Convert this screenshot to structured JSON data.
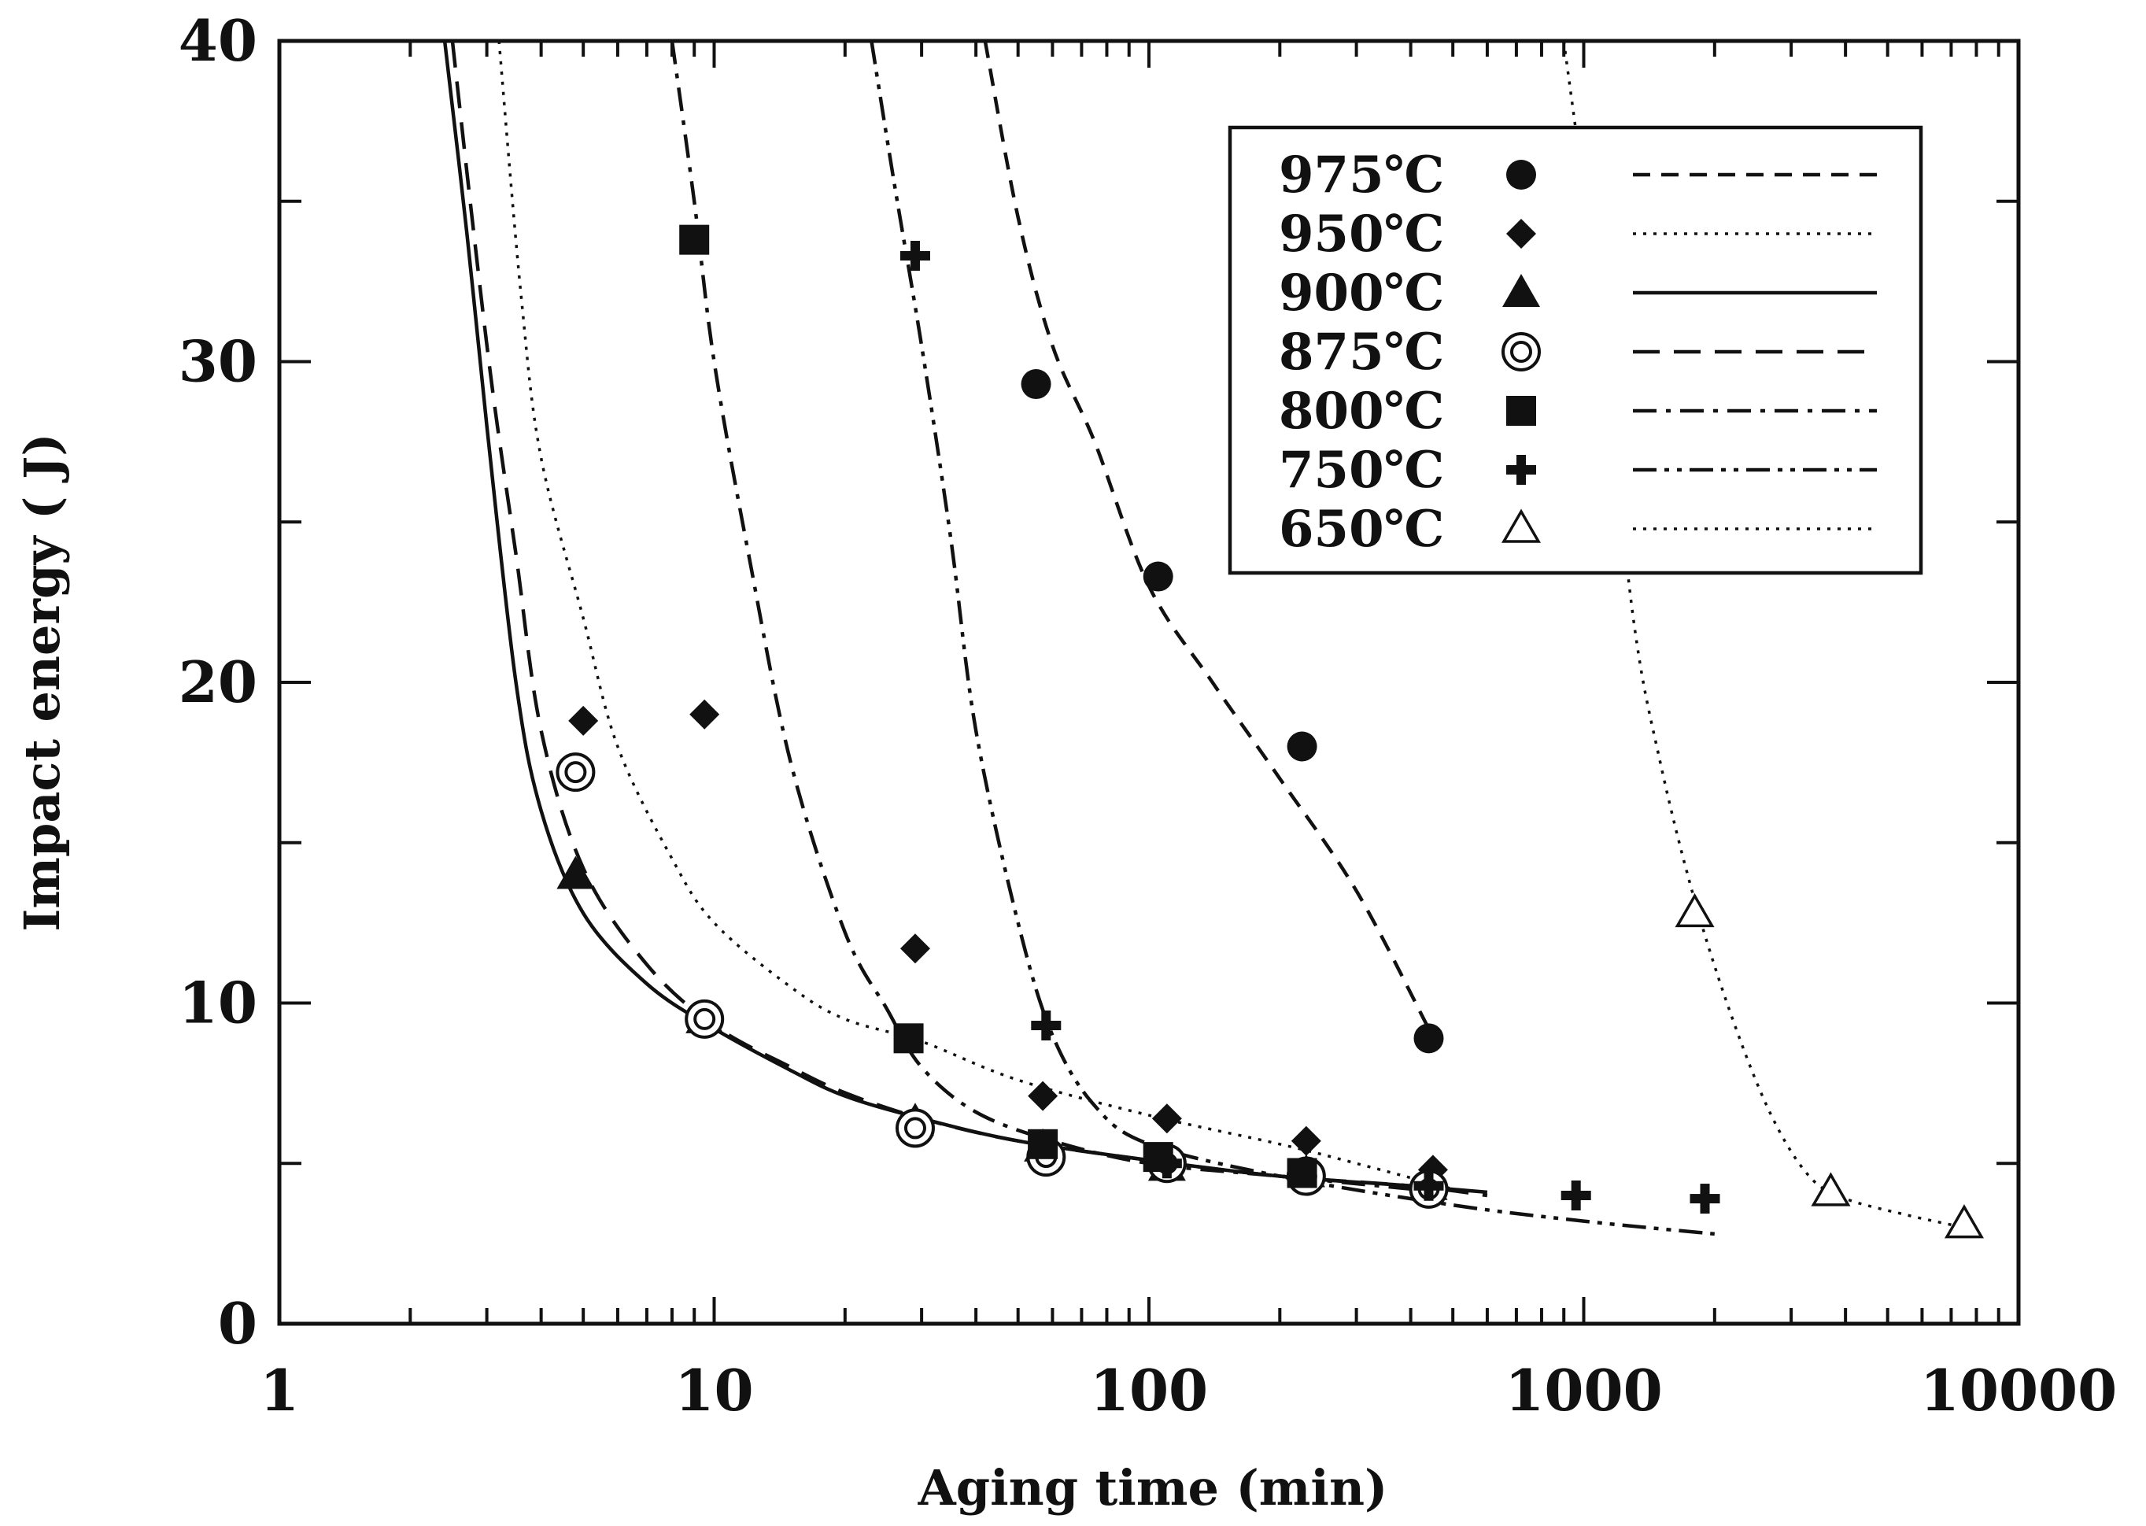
{
  "chart_data": {
    "type": "scatter",
    "title": "",
    "xlabel": "Aging time (min)",
    "ylabel": "Impact energy ( J)",
    "xscale": "log",
    "xlim": [
      1,
      10000
    ],
    "ylim": [
      0,
      40
    ],
    "xticks": [
      "1",
      "10",
      "100",
      "1000",
      "10000"
    ],
    "yticks": [
      "0",
      "10",
      "20",
      "30",
      "40"
    ],
    "legend_position": "top-right",
    "series": [
      {
        "name": "975℃",
        "marker": "filled-circle",
        "line_style": "dashed",
        "points": [
          [
            55,
            29.3
          ],
          [
            105,
            23.3
          ],
          [
            225,
            18.0
          ],
          [
            440,
            8.9
          ]
        ],
        "curve": [
          [
            42,
            40
          ],
          [
            50,
            34.5
          ],
          [
            60,
            30.5
          ],
          [
            75,
            27.5
          ],
          [
            100,
            23.0
          ],
          [
            140,
            20.0
          ],
          [
            200,
            17.0
          ],
          [
            300,
            13.5
          ],
          [
            440,
            9.2
          ]
        ]
      },
      {
        "name": "950℃",
        "marker": "filled-diamond",
        "line_style": "dotted",
        "points": [
          [
            5,
            18.8
          ],
          [
            9.5,
            19.0
          ],
          [
            29,
            11.7
          ],
          [
            57,
            7.1
          ],
          [
            110,
            6.4
          ],
          [
            230,
            5.7
          ],
          [
            450,
            4.8
          ]
        ],
        "curve": [
          [
            3.2,
            40
          ],
          [
            3.6,
            32
          ],
          [
            4,
            27
          ],
          [
            5,
            22
          ],
          [
            6,
            18
          ],
          [
            8,
            14.5
          ],
          [
            10,
            12.5
          ],
          [
            15,
            10.5
          ],
          [
            20,
            9.5
          ],
          [
            30,
            8.8
          ],
          [
            50,
            7.6
          ],
          [
            100,
            6.5
          ],
          [
            200,
            5.6
          ],
          [
            300,
            5.0
          ],
          [
            500,
            4.2
          ]
        ]
      },
      {
        "name": "900℃",
        "marker": "filled-triangle",
        "line_style": "solid",
        "points": [
          [
            4.8,
            14.0
          ],
          [
            9.5,
            9.5
          ],
          [
            29,
            6.3
          ],
          [
            57,
            5.5
          ],
          [
            110,
            4.9
          ],
          [
            230,
            4.7
          ],
          [
            440,
            4.3
          ]
        ],
        "curve": [
          [
            2.4,
            40
          ],
          [
            2.7,
            34
          ],
          [
            3,
            28
          ],
          [
            3.5,
            20
          ],
          [
            4,
            16
          ],
          [
            5,
            12.8
          ],
          [
            7,
            10.6
          ],
          [
            10,
            9.2
          ],
          [
            15,
            7.9
          ],
          [
            20,
            7.1
          ],
          [
            30,
            6.4
          ],
          [
            50,
            5.7
          ],
          [
            100,
            5.1
          ],
          [
            200,
            4.6
          ],
          [
            400,
            4.3
          ],
          [
            600,
            4.1
          ]
        ]
      },
      {
        "name": "875℃",
        "marker": "double-circle",
        "line_style": "long-dashed",
        "points": [
          [
            4.8,
            17.2
          ],
          [
            9.5,
            9.5
          ],
          [
            29,
            6.1
          ],
          [
            58,
            5.2
          ],
          [
            110,
            5.0
          ],
          [
            230,
            4.6
          ],
          [
            440,
            4.2
          ]
        ],
        "curve": [
          [
            2.5,
            40
          ],
          [
            2.8,
            34
          ],
          [
            3.1,
            29
          ],
          [
            3.5,
            24
          ],
          [
            4,
            18.5
          ],
          [
            5,
            14.2
          ],
          [
            7,
            11.2
          ],
          [
            10,
            9.3
          ],
          [
            15,
            8.0
          ],
          [
            20,
            7.2
          ],
          [
            30,
            6.4
          ],
          [
            50,
            5.7
          ],
          [
            100,
            5.1
          ],
          [
            200,
            4.6
          ],
          [
            400,
            4.3
          ],
          [
            600,
            4.0
          ]
        ]
      },
      {
        "name": "800℃",
        "marker": "filled-square",
        "line_style": "dash-dot",
        "points": [
          [
            9,
            33.8
          ],
          [
            28,
            8.9
          ],
          [
            57,
            5.6
          ],
          [
            105,
            5.2
          ],
          [
            225,
            4.7
          ]
        ],
        "curve": [
          [
            8,
            40
          ],
          [
            9,
            35
          ],
          [
            10,
            30
          ],
          [
            12,
            24
          ],
          [
            15,
            17.5
          ],
          [
            20,
            12.2
          ],
          [
            25,
            9.8
          ],
          [
            30,
            8.0
          ],
          [
            40,
            6.6
          ],
          [
            60,
            5.7
          ],
          [
            100,
            5.0
          ],
          [
            200,
            4.6
          ],
          [
            400,
            4.2
          ]
        ]
      },
      {
        "name": "750℃",
        "marker": "plus",
        "line_style": "dash-dot-dot",
        "points": [
          [
            29,
            33.3
          ],
          [
            58,
            9.3
          ],
          [
            110,
            5.0
          ],
          [
            440,
            4.3
          ],
          [
            960,
            4.0
          ],
          [
            1900,
            3.9
          ]
        ],
        "curve": [
          [
            23,
            40
          ],
          [
            26,
            35.5
          ],
          [
            30,
            30.5
          ],
          [
            35,
            24.5
          ],
          [
            40,
            18.5
          ],
          [
            50,
            12.5
          ],
          [
            60,
            9.0
          ],
          [
            75,
            6.8
          ],
          [
            100,
            5.6
          ],
          [
            200,
            4.6
          ],
          [
            500,
            3.7
          ],
          [
            1000,
            3.2
          ],
          [
            2000,
            2.8
          ]
        ]
      },
      {
        "name": "650℃",
        "marker": "open-triangle",
        "line_style": "dotted",
        "points": [
          [
            1800,
            12.8
          ],
          [
            3700,
            4.1
          ],
          [
            7500,
            3.1
          ]
        ],
        "curve": [
          [
            900,
            40
          ],
          [
            1100,
            31
          ],
          [
            1300,
            22
          ],
          [
            1500,
            17.5
          ],
          [
            1800,
            13.2
          ],
          [
            2200,
            9.5
          ],
          [
            2700,
            6.5
          ],
          [
            3300,
            4.6
          ],
          [
            4000,
            3.9
          ],
          [
            5500,
            3.4
          ],
          [
            7500,
            3.0
          ]
        ]
      }
    ]
  }
}
